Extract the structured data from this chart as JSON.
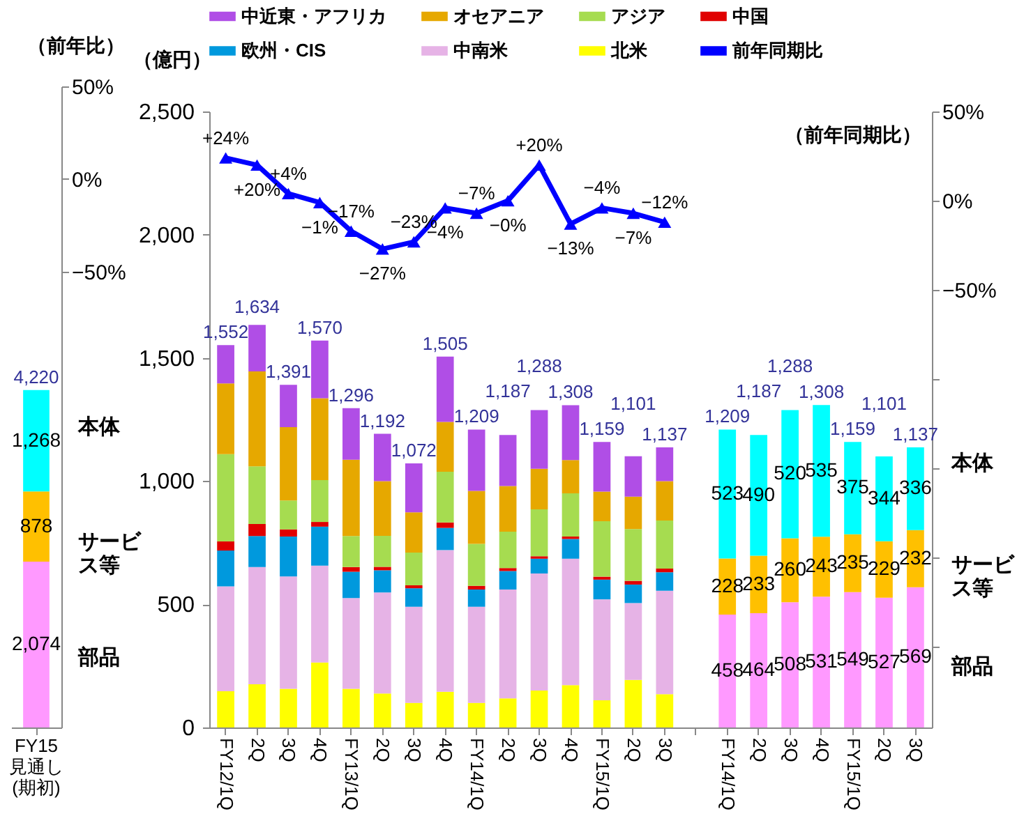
{
  "chart_data": [
    {
      "type": "bar",
      "stacked": true,
      "categories": [
        "FY15\n見通し\n(期初)"
      ],
      "y2label": "（前年比）",
      "y2lim": [
        -296,
        50
      ],
      "y2ticks": [
        {
          "value": 50,
          "label": "50%"
        },
        {
          "value": 0,
          "label": "0%"
        },
        {
          "value": -50,
          "label": "−50%"
        }
      ],
      "totals": [
        "4,220"
      ],
      "annotations": [
        "本体",
        "サービス等",
        "部品"
      ],
      "series": [
        {
          "color": "#ff99ff",
          "values": [
            2074
          ],
          "value_labels": [
            "2,074"
          ]
        },
        {
          "color": "#ffc000",
          "values": [
            878
          ],
          "value_labels": [
            "878"
          ]
        },
        {
          "color": "#00ffff",
          "values": [
            1268
          ],
          "value_labels": [
            "1,268"
          ]
        }
      ]
    },
    {
      "type": "bar",
      "stacked": true,
      "legend": "top",
      "categories": [
        "FY12/1Q",
        "2Q",
        "3Q",
        "4Q",
        "FY13/1Q",
        "2Q",
        "3Q",
        "4Q",
        "FY14/1Q",
        "2Q",
        "3Q",
        "4Q",
        "FY15/1Q",
        "2Q",
        "3Q",
        null,
        "FY14/1Q",
        "2Q",
        "3Q",
        "4Q",
        "FY15/1Q",
        "2Q",
        "3Q"
      ],
      "ylabel": "（億円）",
      "ylim": [
        0,
        2500
      ],
      "yticks": [
        {
          "value": 0,
          "label": "0"
        },
        {
          "value": 500,
          "label": "500"
        },
        {
          "value": 1000,
          "label": "1,000"
        },
        {
          "value": 1500,
          "label": "1,500"
        },
        {
          "value": 2000,
          "label": "2,000"
        },
        {
          "value": 2500,
          "label": "2,500"
        }
      ],
      "y2label": "（前年同期比）",
      "y2lim": [
        -295,
        50
      ],
      "y2ticks": [
        {
          "value": 50,
          "label": "50%"
        },
        {
          "value": 0,
          "label": "0%"
        },
        {
          "value": -50,
          "label": "−50%"
        },
        {
          "value": -100,
          "label": null
        },
        {
          "value": -150,
          "label": null
        },
        {
          "value": -200,
          "label": null
        },
        {
          "value": -250,
          "label": null
        }
      ],
      "totals": [
        "1,552",
        "1,634",
        "1,391",
        "1,570",
        "1,296",
        "1,192",
        "1,072",
        "1,505",
        "1,209",
        "1,187",
        "1,288",
        "1,308",
        "1,159",
        "1,101",
        "1,137",
        null,
        "1,209",
        "1,187",
        "1,288",
        "1,308",
        "1,159",
        "1,101",
        "1,137"
      ],
      "annotations": [
        "本体",
        "サービス等",
        "部品"
      ],
      "series": [
        {
          "name": "北米",
          "color": "#ffff00",
          "values": [
            147,
            175,
            157,
            264,
            157,
            138,
            100,
            145,
            100,
            118,
            150,
            172,
            110,
            193,
            135,
            null,
            null,
            null,
            null,
            null,
            null,
            null,
            null
          ]
        },
        {
          "name": "中南米",
          "color": "#e6b3e6",
          "values": [
            426,
            476,
            456,
            393,
            368,
            410,
            390,
            575,
            390,
            442,
            475,
            513,
            410,
            312,
            420,
            null,
            null,
            null,
            null,
            null,
            null,
            null,
            null
          ]
        },
        {
          "name": "欧州・CIS",
          "color": "#0099dd",
          "values": [
            145,
            126,
            162,
            158,
            107,
            90,
            75,
            90,
            70,
            75,
            60,
            80,
            80,
            75,
            75,
            null,
            null,
            null,
            null,
            null,
            null,
            null,
            null
          ]
        },
        {
          "name": "中国",
          "color": "#e00000",
          "values": [
            37,
            49,
            29,
            19,
            19,
            14,
            12,
            22,
            15,
            12,
            10,
            10,
            12,
            15,
            15,
            null,
            null,
            null,
            null,
            null,
            null,
            null,
            null
          ]
        },
        {
          "name": "アジア",
          "color": "#a6dc50",
          "values": [
            354,
            234,
            117,
            170,
            126,
            126,
            133,
            206,
            170,
            148,
            190,
            175,
            225,
            210,
            195,
            null,
            null,
            null,
            null,
            null,
            null,
            null,
            null
          ]
        },
        {
          "name": "オセアニア",
          "color": "#e6a800",
          "values": [
            287,
            385,
            298,
            332,
            310,
            222,
            163,
            202,
            215,
            185,
            165,
            135,
            120,
            132,
            160,
            null,
            null,
            null,
            null,
            null,
            null,
            null,
            null
          ]
        },
        {
          "name": "中近東・アフリカ",
          "color": "#b04ee6",
          "values": [
            156,
            189,
            172,
            234,
            209,
            192,
            199,
            265,
            249,
            207,
            238,
            223,
            202,
            164,
            137,
            null,
            null,
            null,
            null,
            null,
            null,
            null,
            null
          ]
        },
        {
          "color": "#ff99ff",
          "values": [
            null,
            null,
            null,
            null,
            null,
            null,
            null,
            null,
            null,
            null,
            null,
            null,
            null,
            null,
            null,
            null,
            458,
            464,
            508,
            531,
            549,
            527,
            569
          ],
          "value_labels": [
            null,
            null,
            null,
            null,
            null,
            null,
            null,
            null,
            null,
            null,
            null,
            null,
            null,
            null,
            null,
            null,
            "458",
            "464",
            "508",
            "531",
            "549",
            "527",
            "569"
          ]
        },
        {
          "color": "#ffc000",
          "values": [
            null,
            null,
            null,
            null,
            null,
            null,
            null,
            null,
            null,
            null,
            null,
            null,
            null,
            null,
            null,
            null,
            228,
            233,
            260,
            243,
            235,
            229,
            232
          ],
          "value_labels": [
            null,
            null,
            null,
            null,
            null,
            null,
            null,
            null,
            null,
            null,
            null,
            null,
            null,
            null,
            null,
            null,
            "228",
            "233",
            "260",
            "243",
            "235",
            "229",
            "232"
          ]
        },
        {
          "color": "#00ffff",
          "values": [
            null,
            null,
            null,
            null,
            null,
            null,
            null,
            null,
            null,
            null,
            null,
            null,
            null,
            null,
            null,
            null,
            523,
            490,
            520,
            535,
            375,
            344,
            336
          ],
          "value_labels": [
            null,
            null,
            null,
            null,
            null,
            null,
            null,
            null,
            null,
            null,
            null,
            null,
            null,
            null,
            null,
            null,
            "523",
            "490",
            "520",
            "535",
            "375",
            "344",
            "336"
          ]
        },
        {
          "name": "前年同期比",
          "type": "line",
          "axis": "y2",
          "color": "#0000ff",
          "marker": "triangle",
          "values": [
            24,
            20,
            4,
            -1,
            -17,
            -27,
            -23,
            -4,
            -7,
            0,
            20,
            -13,
            -4,
            -7,
            -12,
            null,
            null,
            null,
            null,
            null,
            null,
            null,
            null
          ],
          "value_labels": [
            "+24%",
            "+20%",
            "+4%",
            "−1%",
            "−17%",
            "−27%",
            "−23%",
            "−4%",
            "−7%",
            "−0%",
            "+20%",
            "−13%",
            "−4%",
            "−7%",
            "−12%",
            null,
            null,
            null,
            null,
            null,
            null,
            null,
            null
          ]
        }
      ]
    }
  ]
}
